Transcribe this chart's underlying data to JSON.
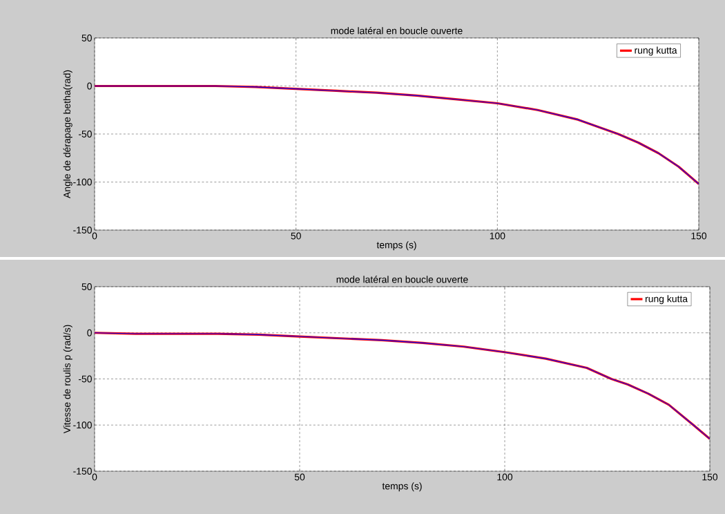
{
  "chart_data": [
    {
      "type": "line",
      "title": "mode latéral en boucle ouverte",
      "xlabel": "temps (s)",
      "ylabel": "Angle de dérapage betha(rad)",
      "xlim": [
        0,
        150
      ],
      "ylim": [
        -150,
        50
      ],
      "xticks": [
        0,
        50,
        100,
        150
      ],
      "yticks": [
        -150,
        -100,
        -50,
        0,
        50
      ],
      "grid": true,
      "legend": "top right",
      "marker": "none",
      "line_style": "solid",
      "x": [
        0,
        10,
        20,
        30,
        40,
        50,
        60,
        70,
        80,
        90,
        100,
        110,
        120,
        130,
        135,
        140,
        145,
        150
      ],
      "series": [
        {
          "name": "rung kutta",
          "color": "#ff0000",
          "values": [
            0,
            0,
            0,
            0,
            -1,
            -3,
            -5,
            -7,
            -10,
            -14,
            -18,
            -25,
            -35,
            -50,
            -59,
            -70,
            -84,
            -102
          ]
        },
        {
          "color": "#0000ff",
          "values": [
            0,
            0,
            0,
            0,
            -1,
            -3,
            -5,
            -7,
            -10,
            -14,
            -18,
            -25,
            -35,
            -50,
            -59,
            -70,
            -84,
            -102
          ]
        }
      ]
    },
    {
      "type": "line",
      "title": "mode latéral en boucle ouverte",
      "xlabel": "temps (s)",
      "ylabel": "Vitesse de roulis p (rad/s)",
      "xlim": [
        0,
        150
      ],
      "ylim": [
        -150,
        50
      ],
      "xticks": [
        0,
        50,
        100,
        150
      ],
      "yticks": [
        -150,
        -100,
        -50,
        0,
        50
      ],
      "grid": true,
      "legend": "top right",
      "marker": "none",
      "line_style": "solid",
      "x": [
        0,
        10,
        30,
        40,
        50,
        60,
        70,
        80,
        90,
        100,
        110,
        120,
        126,
        130,
        135,
        140,
        146,
        150
      ],
      "series": [
        {
          "name": "rung kutta",
          "color": "#ff0000",
          "values": [
            0,
            -1,
            -1,
            -2,
            -4,
            -6,
            -8,
            -11,
            -15,
            -21,
            -28,
            -38,
            -50,
            -56,
            -66,
            -78,
            -100,
            -115
          ]
        },
        {
          "color": "#0000ff",
          "values": [
            0,
            -1,
            -1,
            -2,
            -4,
            -6,
            -8,
            -11,
            -15,
            -21,
            -28,
            -38,
            -50,
            -56,
            -66,
            -78,
            -100,
            -115
          ]
        }
      ]
    }
  ]
}
